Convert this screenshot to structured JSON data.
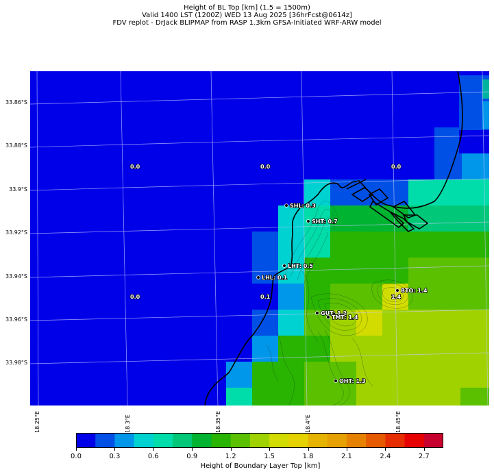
{
  "header": {
    "line1": "Height of BL Top [km] (1.5 = 1500m)",
    "line2": "Valid 1400 LST (1200Z) WED 13 Aug 2025 [36hrFcst@0614z]",
    "line3": "FDV replot - DrJack BLIPMAP from RASP 1.3km GFSA-Initiated WRF-ARW model"
  },
  "axes": {
    "lat_labels": [
      "33.86°S",
      "33.88°S",
      "33.9°S",
      "33.92°S",
      "33.94°S",
      "33.96°S",
      "33.98°S"
    ],
    "lon_labels": [
      "18.25°E",
      "18.3°E",
      "18.35°E",
      "18.4°E",
      "18.45°E"
    ]
  },
  "colorbar": {
    "label": "Height of Boundary Layer Top [km]",
    "ticks": [
      "0.0",
      "0.3",
      "0.6",
      "0.9",
      "1.2",
      "1.5",
      "1.8",
      "2.1",
      "2.4",
      "2.7"
    ],
    "colors": [
      "#0000e8",
      "#0050e6",
      "#0096ea",
      "#00d2d2",
      "#00dcaa",
      "#00c878",
      "#00b432",
      "#28b400",
      "#5ac000",
      "#a0d200",
      "#d2dc00",
      "#e6d200",
      "#e6b400",
      "#e6a000",
      "#e68200",
      "#e65a00",
      "#e62d00",
      "#e60000",
      "#c8002d"
    ]
  },
  "stations": [
    {
      "label": "SHL: 0.3"
    },
    {
      "label": "SHT: 0.7"
    },
    {
      "label": "LHT: 0.5"
    },
    {
      "label": "LHL: 0.1"
    },
    {
      "label": "GUT: 1.2"
    },
    {
      "label": "TMT: 1.4"
    },
    {
      "label": "BTO: 1.4"
    },
    {
      "label": "OHT: 1.3"
    }
  ],
  "grid_values": [
    "0.0",
    "0.0",
    "0.0",
    "0.0",
    "0.1",
    "1.4"
  ]
}
